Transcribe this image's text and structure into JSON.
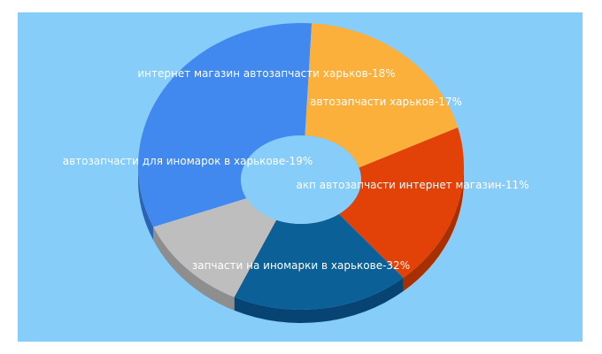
{
  "chart_data": {
    "type": "pie",
    "variant": "3d-donut",
    "legend": "none",
    "background_color": "#87cdfa",
    "slices": [
      {
        "label": "запчасти на иномарки в харькове-32%",
        "value": 32,
        "color": "#4189ee",
        "side_color": "#2e63b3"
      },
      {
        "label": "автозапчасти для иномарок в харькове-19%",
        "value": 19,
        "color": "#fbb03b",
        "side_color": "#c38322"
      },
      {
        "label": "интернет магазин автозапчасти харьков-18%",
        "value": 18,
        "color": "#e24208",
        "side_color": "#a73000"
      },
      {
        "label": "автозапчасти харьков-17%",
        "value": 17,
        "color": "#0b6097",
        "side_color": "#074473"
      },
      {
        "label": "акп автозапчасти интернет магазин-11%",
        "value": 11,
        "color": "#bebebe",
        "side_color": "#8e8e8e"
      }
    ]
  }
}
